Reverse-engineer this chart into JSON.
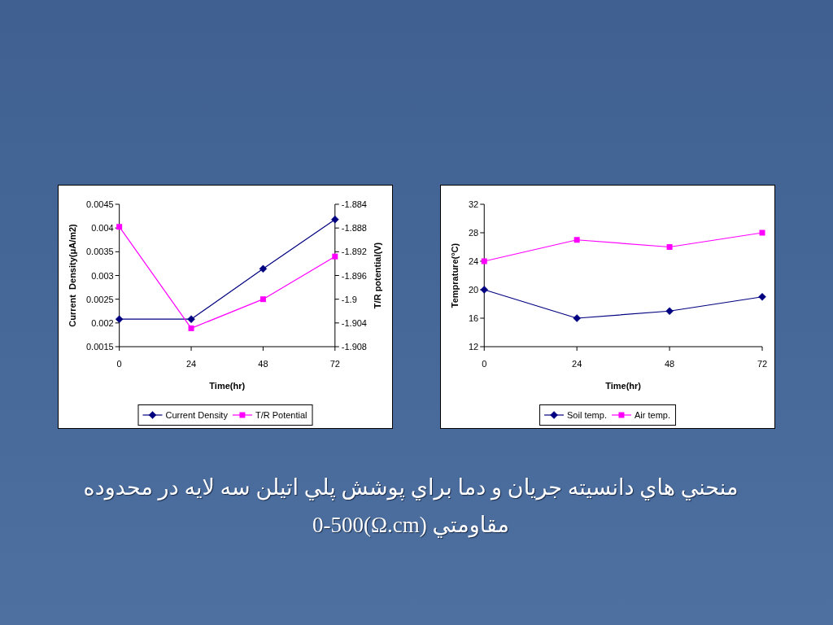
{
  "chart_data": [
    {
      "type": "line",
      "x": [
        0,
        24,
        48,
        72
      ],
      "xlabel": "Time(hr)",
      "ylabel": "Current  Density(μA/m2)",
      "y2label": "T/R potential(V)",
      "xlim": [
        0,
        72
      ],
      "xticks": [
        0,
        24,
        48,
        72
      ],
      "ylim": [
        0.0015,
        0.0045
      ],
      "yticks": [
        0.0015,
        0.002,
        0.0025,
        0.003,
        0.0035,
        0.004,
        0.0045
      ],
      "y2lim": [
        -1.908,
        -1.884
      ],
      "y2ticks": [
        -1.908,
        -1.904,
        -1.9,
        -1.896,
        -1.892,
        -1.888,
        -1.884
      ],
      "legend": "bottom",
      "series": [
        {
          "name": "Current Density",
          "color": "#000080",
          "marker": "diamond",
          "values": [
            0.00208,
            0.00208,
            0.00314,
            0.00418
          ]
        },
        {
          "name": "T/R Potential",
          "color": "#ff00ff",
          "marker": "square",
          "axis": "y2",
          "values": [
            -1.8878,
            -1.9049,
            -1.9,
            -1.8928
          ]
        }
      ]
    },
    {
      "type": "line",
      "x": [
        0,
        24,
        48,
        72
      ],
      "xlabel": "Time(hr)",
      "ylabel": "Temprature(°C)",
      "xlim": [
        0,
        72
      ],
      "xticks": [
        0,
        24,
        48,
        72
      ],
      "ylim": [
        12,
        32
      ],
      "yticks": [
        12,
        16,
        20,
        24,
        28,
        32
      ],
      "legend": "bottom",
      "series": [
        {
          "name": "Soil temp.",
          "color": "#000080",
          "marker": "diamond",
          "values": [
            20,
            16,
            17,
            19
          ]
        },
        {
          "name": "Air temp.",
          "color": "#ff00ff",
          "marker": "square",
          "values": [
            24,
            27,
            26,
            28
          ]
        }
      ]
    },
    {
      "type": "other",
      "title": "منحني هاي دانسيته جريان و دما براي پوشش پلي اتيلن سه لايه در محدوده مقاومتي (Ω.cm)0-500"
    }
  ]
}
